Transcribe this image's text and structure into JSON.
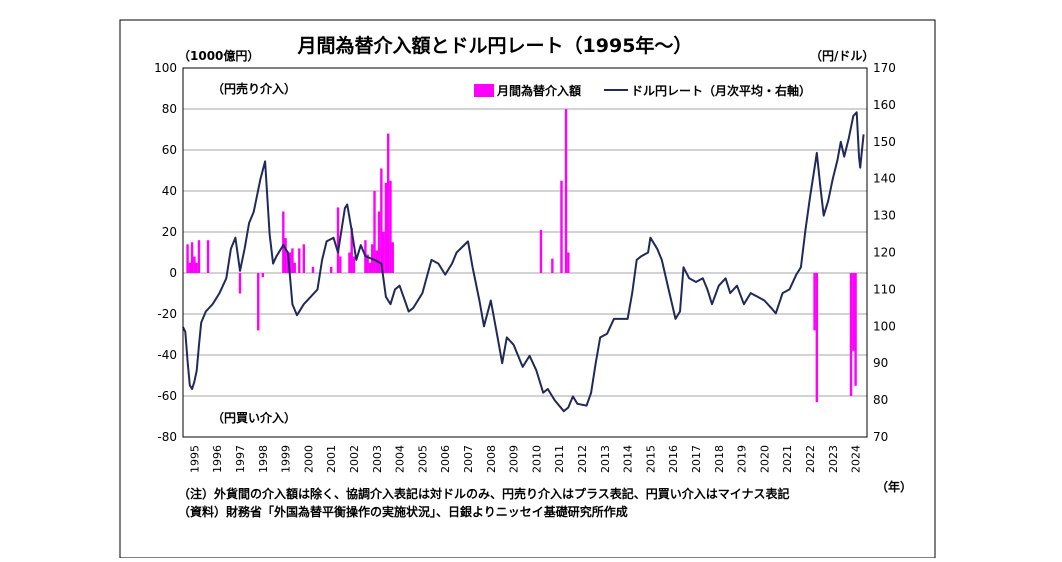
{
  "chart_data": {
    "type": "bar+line",
    "title": "月間為替介入額とドル円レート（1995年～）",
    "left_axis": {
      "unit": "（1000億円）",
      "ylim": [
        -80,
        100
      ],
      "ticks": [
        100,
        80,
        60,
        40,
        20,
        0,
        -20,
        -40,
        -60,
        -80
      ],
      "tick_labels": [
        "100",
        "80",
        "60",
        "40",
        "20",
        "0",
        "-20",
        "-40",
        "-60",
        "-80"
      ]
    },
    "right_axis": {
      "unit": "（円/ドル）",
      "ylim": [
        70,
        170
      ],
      "ticks": [
        170,
        160,
        150,
        140,
        130,
        120,
        110,
        100,
        90,
        80,
        70
      ],
      "tick_labels": [
        "170",
        "160",
        "150",
        "140",
        "130",
        "120",
        "110",
        "100",
        "90",
        "80",
        "70"
      ]
    },
    "x_axis": {
      "unit": "（年）",
      "range": [
        1995,
        2025
      ],
      "year_labels": [
        "1995",
        "1996",
        "1997",
        "1998",
        "1999",
        "2000",
        "2001",
        "2002",
        "2003",
        "2004",
        "2005",
        "2006",
        "2007",
        "2008",
        "2009",
        "2010",
        "2011",
        "2012",
        "2013",
        "2014",
        "2015",
        "2016",
        "2017",
        "2018",
        "2019",
        "2020",
        "2021",
        "2022",
        "2023",
        "2024"
      ]
    },
    "annotations": {
      "sell": "（円売り介入）",
      "buy": "（円買い介入）"
    },
    "legend": {
      "bar_label": "月間為替介入額",
      "line_label": "ドル円レート（月次平均・右軸）",
      "placement": "top-right"
    },
    "colors": {
      "bar": "#ff00ff",
      "line": "#1f2a5a",
      "grid": "#a6a6a6"
    },
    "series": [
      {
        "name": "月間為替介入額",
        "axis": "left",
        "points": [
          {
            "t": 1995.2,
            "v": 14
          },
          {
            "t": 1995.3,
            "v": 5
          },
          {
            "t": 1995.4,
            "v": 15
          },
          {
            "t": 1995.5,
            "v": 8
          },
          {
            "t": 1995.6,
            "v": 5
          },
          {
            "t": 1995.7,
            "v": 16
          },
          {
            "t": 1996.1,
            "v": 16
          },
          {
            "t": 1997.5,
            "v": -10
          },
          {
            "t": 1998.3,
            "v": -28
          },
          {
            "t": 1998.5,
            "v": -2
          },
          {
            "t": 1999.4,
            "v": 30
          },
          {
            "t": 1999.5,
            "v": 17
          },
          {
            "t": 1999.6,
            "v": 10
          },
          {
            "t": 1999.7,
            "v": 10
          },
          {
            "t": 1999.8,
            "v": 12
          },
          {
            "t": 1999.9,
            "v": 5
          },
          {
            "t": 2000.1,
            "v": 12
          },
          {
            "t": 2000.3,
            "v": 14
          },
          {
            "t": 2000.7,
            "v": 3
          },
          {
            "t": 2001.5,
            "v": 3
          },
          {
            "t": 2001.8,
            "v": 32
          },
          {
            "t": 2001.9,
            "v": 8
          },
          {
            "t": 2002.3,
            "v": 10
          },
          {
            "t": 2002.4,
            "v": 22
          },
          {
            "t": 2002.5,
            "v": 8
          },
          {
            "t": 2003.0,
            "v": 16
          },
          {
            "t": 2003.1,
            "v": 9
          },
          {
            "t": 2003.2,
            "v": 5
          },
          {
            "t": 2003.3,
            "v": 14
          },
          {
            "t": 2003.4,
            "v": 40
          },
          {
            "t": 2003.5,
            "v": 11
          },
          {
            "t": 2003.6,
            "v": 30
          },
          {
            "t": 2003.7,
            "v": 51
          },
          {
            "t": 2003.8,
            "v": 20
          },
          {
            "t": 2003.9,
            "v": 44
          },
          {
            "t": 2004.0,
            "v": 68
          },
          {
            "t": 2004.1,
            "v": 45
          },
          {
            "t": 2004.2,
            "v": 15
          },
          {
            "t": 2010.7,
            "v": 21
          },
          {
            "t": 2011.2,
            "v": 7
          },
          {
            "t": 2011.6,
            "v": 45
          },
          {
            "t": 2011.8,
            "v": 80
          },
          {
            "t": 2011.9,
            "v": 10
          },
          {
            "t": 2022.7,
            "v": -28
          },
          {
            "t": 2022.8,
            "v": -63
          },
          {
            "t": 2024.3,
            "v": -60
          },
          {
            "t": 2024.4,
            "v": -38
          },
          {
            "t": 2024.5,
            "v": -55
          }
        ]
      },
      {
        "name": "ドル円レート（月次平均・右軸）",
        "axis": "right",
        "points": [
          {
            "t": 1995.0,
            "v": 99.8
          },
          {
            "t": 1995.1,
            "v": 98.5
          },
          {
            "t": 1995.2,
            "v": 90.5
          },
          {
            "t": 1995.3,
            "v": 84.0
          },
          {
            "t": 1995.4,
            "v": 83.0
          },
          {
            "t": 1995.5,
            "v": 85.0
          },
          {
            "t": 1995.6,
            "v": 88.0
          },
          {
            "t": 1995.7,
            "v": 95.0
          },
          {
            "t": 1995.8,
            "v": 101.0
          },
          {
            "t": 1996.0,
            "v": 104.0
          },
          {
            "t": 1996.3,
            "v": 106.0
          },
          {
            "t": 1996.6,
            "v": 109.0
          },
          {
            "t": 1996.9,
            "v": 113.0
          },
          {
            "t": 1997.1,
            "v": 121.0
          },
          {
            "t": 1997.3,
            "v": 124.0
          },
          {
            "t": 1997.5,
            "v": 115.0
          },
          {
            "t": 1997.7,
            "v": 121.0
          },
          {
            "t": 1997.9,
            "v": 128.0
          },
          {
            "t": 1998.1,
            "v": 131.0
          },
          {
            "t": 1998.4,
            "v": 140.0
          },
          {
            "t": 1998.6,
            "v": 144.7
          },
          {
            "t": 1998.8,
            "v": 125.0
          },
          {
            "t": 1998.95,
            "v": 117.0
          },
          {
            "t": 1999.1,
            "v": 119.0
          },
          {
            "t": 1999.4,
            "v": 122.0
          },
          {
            "t": 1999.6,
            "v": 120.0
          },
          {
            "t": 1999.8,
            "v": 106.0
          },
          {
            "t": 2000.0,
            "v": 103.0
          },
          {
            "t": 2000.3,
            "v": 106.0
          },
          {
            "t": 2000.6,
            "v": 108.0
          },
          {
            "t": 2000.9,
            "v": 110.0
          },
          {
            "t": 2001.1,
            "v": 118.0
          },
          {
            "t": 2001.3,
            "v": 123.0
          },
          {
            "t": 2001.6,
            "v": 124.0
          },
          {
            "t": 2001.8,
            "v": 120.0
          },
          {
            "t": 2002.1,
            "v": 132.0
          },
          {
            "t": 2002.2,
            "v": 133.0
          },
          {
            "t": 2002.4,
            "v": 126.0
          },
          {
            "t": 2002.6,
            "v": 118.0
          },
          {
            "t": 2002.8,
            "v": 122.0
          },
          {
            "t": 2003.0,
            "v": 119.0
          },
          {
            "t": 2003.4,
            "v": 118.0
          },
          {
            "t": 2003.7,
            "v": 117.0
          },
          {
            "t": 2003.9,
            "v": 108.0
          },
          {
            "t": 2004.1,
            "v": 106.0
          },
          {
            "t": 2004.3,
            "v": 110.0
          },
          {
            "t": 2004.5,
            "v": 111.0
          },
          {
            "t": 2004.9,
            "v": 104.0
          },
          {
            "t": 2005.1,
            "v": 105.0
          },
          {
            "t": 2005.5,
            "v": 109.0
          },
          {
            "t": 2005.9,
            "v": 118.0
          },
          {
            "t": 2006.2,
            "v": 117.0
          },
          {
            "t": 2006.5,
            "v": 114.0
          },
          {
            "t": 2006.8,
            "v": 117.0
          },
          {
            "t": 2007.0,
            "v": 120.0
          },
          {
            "t": 2007.5,
            "v": 123.0
          },
          {
            "t": 2007.7,
            "v": 116.0
          },
          {
            "t": 2008.0,
            "v": 107.0
          },
          {
            "t": 2008.2,
            "v": 100.0
          },
          {
            "t": 2008.5,
            "v": 107.0
          },
          {
            "t": 2008.8,
            "v": 97.0
          },
          {
            "t": 2009.0,
            "v": 90.0
          },
          {
            "t": 2009.2,
            "v": 97.0
          },
          {
            "t": 2009.5,
            "v": 95.0
          },
          {
            "t": 2009.9,
            "v": 89.0
          },
          {
            "t": 2010.2,
            "v": 92.0
          },
          {
            "t": 2010.5,
            "v": 88.0
          },
          {
            "t": 2010.8,
            "v": 82.0
          },
          {
            "t": 2011.0,
            "v": 83.0
          },
          {
            "t": 2011.3,
            "v": 80.0
          },
          {
            "t": 2011.7,
            "v": 77.0
          },
          {
            "t": 2011.9,
            "v": 78.0
          },
          {
            "t": 2012.1,
            "v": 81.0
          },
          {
            "t": 2012.3,
            "v": 79.0
          },
          {
            "t": 2012.7,
            "v": 78.5
          },
          {
            "t": 2012.9,
            "v": 82.0
          },
          {
            "t": 2013.1,
            "v": 90.0
          },
          {
            "t": 2013.3,
            "v": 97.0
          },
          {
            "t": 2013.6,
            "v": 98.0
          },
          {
            "t": 2013.9,
            "v": 102.0
          },
          {
            "t": 2014.2,
            "v": 102.0
          },
          {
            "t": 2014.5,
            "v": 102.0
          },
          {
            "t": 2014.7,
            "v": 109.0
          },
          {
            "t": 2014.9,
            "v": 118.0
          },
          {
            "t": 2015.1,
            "v": 119.0
          },
          {
            "t": 2015.4,
            "v": 120.0
          },
          {
            "t": 2015.5,
            "v": 124.0
          },
          {
            "t": 2015.8,
            "v": 121.0
          },
          {
            "t": 2016.0,
            "v": 118.0
          },
          {
            "t": 2016.3,
            "v": 110.0
          },
          {
            "t": 2016.6,
            "v": 102.0
          },
          {
            "t": 2016.8,
            "v": 104.0
          },
          {
            "t": 2016.95,
            "v": 116.0
          },
          {
            "t": 2017.2,
            "v": 113.0
          },
          {
            "t": 2017.5,
            "v": 112.0
          },
          {
            "t": 2017.8,
            "v": 113.0
          },
          {
            "t": 2018.0,
            "v": 110.0
          },
          {
            "t": 2018.2,
            "v": 106.0
          },
          {
            "t": 2018.5,
            "v": 111.0
          },
          {
            "t": 2018.8,
            "v": 113.0
          },
          {
            "t": 2019.0,
            "v": 109.0
          },
          {
            "t": 2019.3,
            "v": 111.0
          },
          {
            "t": 2019.6,
            "v": 106.0
          },
          {
            "t": 2019.9,
            "v": 109.0
          },
          {
            "t": 2020.2,
            "v": 108.0
          },
          {
            "t": 2020.5,
            "v": 107.0
          },
          {
            "t": 2020.8,
            "v": 105.0
          },
          {
            "t": 2021.0,
            "v": 103.5
          },
          {
            "t": 2021.3,
            "v": 109.0
          },
          {
            "t": 2021.6,
            "v": 110.0
          },
          {
            "t": 2021.9,
            "v": 114.0
          },
          {
            "t": 2022.1,
            "v": 116.0
          },
          {
            "t": 2022.3,
            "v": 126.0
          },
          {
            "t": 2022.5,
            "v": 135.0
          },
          {
            "t": 2022.7,
            "v": 143.0
          },
          {
            "t": 2022.8,
            "v": 147.0
          },
          {
            "t": 2022.95,
            "v": 138.0
          },
          {
            "t": 2023.1,
            "v": 130.0
          },
          {
            "t": 2023.3,
            "v": 134.0
          },
          {
            "t": 2023.5,
            "v": 140.0
          },
          {
            "t": 2023.7,
            "v": 145.0
          },
          {
            "t": 2023.85,
            "v": 150.0
          },
          {
            "t": 2024.0,
            "v": 146.0
          },
          {
            "t": 2024.2,
            "v": 151.0
          },
          {
            "t": 2024.4,
            "v": 157.0
          },
          {
            "t": 2024.55,
            "v": 158.0
          },
          {
            "t": 2024.65,
            "v": 146.0
          },
          {
            "t": 2024.7,
            "v": 143.0
          },
          {
            "t": 2024.85,
            "v": 152.0
          }
        ]
      }
    ],
    "notes": [
      "（注）外貨間の介入額は除く、協調介入表記は対ドルのみ、円売り介入はプラス表記、円買い介入はマイナス表記",
      "（資料）財務省「外国為替平衡操作の実施状況」、日銀よりニッセイ基礎研究所作成"
    ]
  }
}
